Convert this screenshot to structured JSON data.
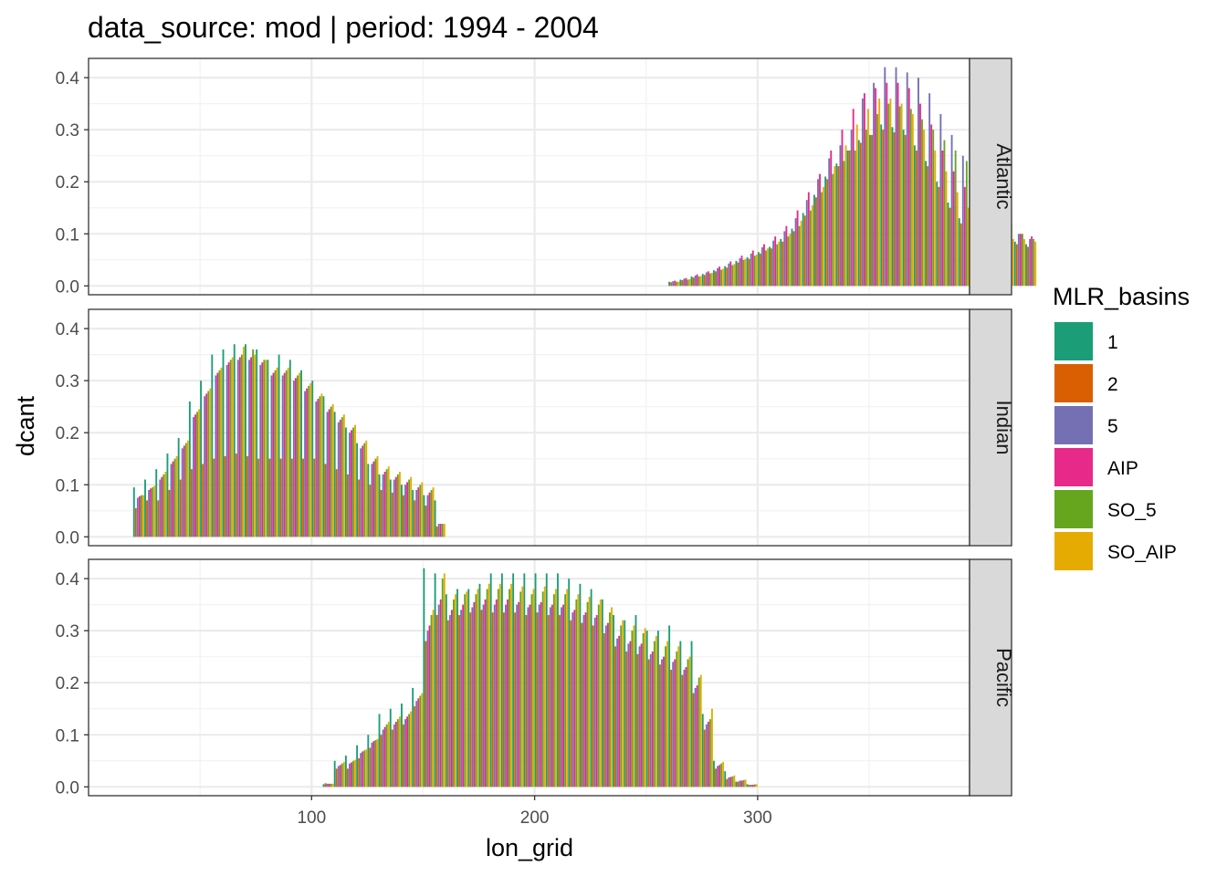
{
  "chart_data": {
    "type": "bar",
    "title": "data_source: mod | period: 1994 - 2004",
    "xlabel": "lon_grid",
    "ylabel": "dcant",
    "xlim": [
      0,
      395
    ],
    "ylim": [
      -0.017,
      0.437
    ],
    "x_ticks": [
      100,
      200,
      300
    ],
    "x_tick_labels": [
      "100",
      "200",
      "300"
    ],
    "y_ticks": [
      0.0,
      0.1,
      0.2,
      0.3,
      0.4
    ],
    "y_tick_labels": [
      "0.0",
      "0.1",
      "0.2",
      "0.3",
      "0.4"
    ],
    "grid": true,
    "facet_by": "basin",
    "facets": [
      "Atlantic",
      "Indian",
      "Pacific"
    ],
    "legend": {
      "title": "MLR_basins",
      "position": "right",
      "entries": [
        "1",
        "2",
        "5",
        "AIP",
        "SO_5",
        "SO_AIP"
      ]
    },
    "series_colors": {
      "1": "#1B9E77",
      "2": "#D95F02",
      "5": "#7570B3",
      "AIP": "#E7298A",
      "SO_5": "#66A61E",
      "SO_AIP": "#E6AB02"
    },
    "bar_groups": {
      "x_spacing": 5,
      "Atlantic": {
        "x_start": 262.5,
        "values": {
          "1": [
            0.008,
            0.012,
            0.018,
            0.023,
            0.03,
            0.038,
            0.048,
            0.055,
            0.065,
            0.075,
            0.09,
            0.11,
            0.14,
            0.175,
            0.21,
            0.235,
            0.26,
            0.28,
            0.29,
            0.31,
            0.305,
            0.3,
            0.27,
            0.24,
            0.2,
            0.16,
            0.13,
            0.11,
            0.09,
            0.085,
            0.08,
            0.085,
            0.08
          ],
          "2": [
            0.007,
            0.011,
            0.016,
            0.021,
            0.028,
            0.035,
            0.045,
            0.052,
            0.062,
            0.072,
            0.085,
            0.105,
            0.135,
            0.17,
            0.205,
            0.23,
            0.26,
            0.275,
            0.29,
            0.3,
            0.295,
            0.29,
            0.26,
            0.23,
            0.19,
            0.15,
            0.12,
            0.1,
            0.085,
            0.08,
            0.075,
            0.08,
            0.075
          ],
          "5": [
            0.009,
            0.014,
            0.02,
            0.026,
            0.034,
            0.043,
            0.053,
            0.062,
            0.074,
            0.087,
            0.105,
            0.13,
            0.165,
            0.205,
            0.245,
            0.27,
            0.3,
            0.36,
            0.39,
            0.42,
            0.42,
            0.41,
            0.4,
            0.37,
            0.33,
            0.29,
            0.25,
            0.21,
            0.18,
            0.15,
            0.12,
            0.1,
            0.09
          ],
          "AIP": [
            0.01,
            0.015,
            0.022,
            0.028,
            0.037,
            0.047,
            0.058,
            0.068,
            0.08,
            0.095,
            0.115,
            0.145,
            0.18,
            0.215,
            0.26,
            0.3,
            0.34,
            0.37,
            0.38,
            0.39,
            0.39,
            0.38,
            0.35,
            0.31,
            0.26,
            0.22,
            0.19,
            0.16,
            0.14,
            0.12,
            0.1,
            0.1,
            0.095
          ],
          "SO_5": [
            0.008,
            0.012,
            0.018,
            0.024,
            0.031,
            0.04,
            0.05,
            0.058,
            0.068,
            0.08,
            0.095,
            0.115,
            0.145,
            0.18,
            0.215,
            0.24,
            0.26,
            0.3,
            0.33,
            0.35,
            0.345,
            0.34,
            0.32,
            0.3,
            0.28,
            0.26,
            0.24,
            0.21,
            0.18,
            0.15,
            0.12,
            0.1,
            0.09
          ],
          "SO_AIP": [
            0.008,
            0.013,
            0.019,
            0.025,
            0.033,
            0.042,
            0.052,
            0.06,
            0.072,
            0.085,
            0.1,
            0.125,
            0.155,
            0.19,
            0.23,
            0.27,
            0.31,
            0.34,
            0.36,
            0.36,
            0.35,
            0.33,
            0.3,
            0.26,
            0.22,
            0.18,
            0.15,
            0.13,
            0.11,
            0.1,
            0.09,
            0.09,
            0.085
          ]
        }
      },
      "Indian": {
        "x_start": 22.5,
        "values": {
          "1": [
            0.095,
            0.11,
            0.13,
            0.16,
            0.19,
            0.26,
            0.3,
            0.35,
            0.36,
            0.37,
            0.37,
            0.36,
            0.34,
            0.35,
            0.34,
            0.32,
            0.3,
            0.27,
            0.24,
            0.21,
            0.18,
            0.14,
            0.12,
            0.11,
            0.1,
            0.09,
            0.08,
            0.07
          ],
          "2": [
            0.055,
            0.07,
            0.07,
            0.09,
            0.11,
            0.13,
            0.14,
            0.15,
            0.155,
            0.16,
            0.155,
            0.15,
            0.15,
            0.15,
            0.15,
            0.15,
            0.15,
            0.14,
            0.13,
            0.12,
            0.11,
            0.1,
            0.09,
            0.085,
            0.08,
            0.07,
            0.06,
            0.02
          ],
          "5": [
            0.075,
            0.09,
            0.11,
            0.14,
            0.17,
            0.23,
            0.27,
            0.31,
            0.33,
            0.34,
            0.34,
            0.33,
            0.31,
            0.31,
            0.3,
            0.28,
            0.26,
            0.24,
            0.22,
            0.2,
            0.17,
            0.14,
            0.12,
            0.11,
            0.1,
            0.09,
            0.08,
            0.025
          ],
          "AIP": [
            0.078,
            0.093,
            0.115,
            0.145,
            0.175,
            0.235,
            0.275,
            0.315,
            0.335,
            0.345,
            0.345,
            0.335,
            0.315,
            0.315,
            0.305,
            0.285,
            0.265,
            0.245,
            0.225,
            0.205,
            0.175,
            0.145,
            0.125,
            0.115,
            0.105,
            0.095,
            0.085,
            0.025
          ],
          "SO_5": [
            0.08,
            0.095,
            0.12,
            0.15,
            0.18,
            0.24,
            0.28,
            0.32,
            0.34,
            0.35,
            0.36,
            0.34,
            0.32,
            0.32,
            0.31,
            0.29,
            0.27,
            0.25,
            0.23,
            0.21,
            0.18,
            0.15,
            0.13,
            0.12,
            0.11,
            0.1,
            0.09,
            0.025
          ],
          "SO_AIP": [
            0.08,
            0.098,
            0.125,
            0.155,
            0.185,
            0.245,
            0.285,
            0.325,
            0.345,
            0.365,
            0.35,
            0.34,
            0.325,
            0.325,
            0.315,
            0.295,
            0.275,
            0.255,
            0.235,
            0.215,
            0.185,
            0.155,
            0.135,
            0.125,
            0.115,
            0.105,
            0.095,
            0.025
          ]
        }
      },
      "Pacific": {
        "x_start": 107.5,
        "values": {
          "1": [
            0.005,
            0.05,
            0.06,
            0.08,
            0.1,
            0.14,
            0.15,
            0.16,
            0.19,
            0.42,
            0.41,
            0.37,
            0.38,
            0.38,
            0.39,
            0.41,
            0.41,
            0.41,
            0.41,
            0.41,
            0.41,
            0.41,
            0.4,
            0.39,
            0.38,
            0.36,
            0.33,
            0.32,
            0.33,
            0.3,
            0.3,
            0.31,
            0.28,
            0.28,
            0.14,
            0.05,
            0.03,
            0.01,
            0.005
          ],
          "2": [
            0.007,
            0.035,
            0.035,
            0.055,
            0.075,
            0.1,
            0.11,
            0.12,
            0.155,
            0.28,
            0.33,
            0.32,
            0.33,
            0.335,
            0.34,
            0.335,
            0.335,
            0.335,
            0.33,
            0.335,
            0.33,
            0.33,
            0.32,
            0.315,
            0.31,
            0.295,
            0.27,
            0.26,
            0.255,
            0.245,
            0.235,
            0.225,
            0.215,
            0.18,
            0.11,
            0.035,
            0.015,
            0.01,
            0.004
          ],
          "5": [
            0.006,
            0.04,
            0.045,
            0.065,
            0.085,
            0.11,
            0.12,
            0.13,
            0.165,
            0.3,
            0.35,
            0.33,
            0.34,
            0.345,
            0.35,
            0.35,
            0.35,
            0.35,
            0.345,
            0.35,
            0.345,
            0.345,
            0.335,
            0.33,
            0.325,
            0.31,
            0.285,
            0.275,
            0.27,
            0.255,
            0.245,
            0.24,
            0.225,
            0.19,
            0.12,
            0.04,
            0.018,
            0.012,
            0.004
          ],
          "AIP": [
            0.006,
            0.042,
            0.047,
            0.068,
            0.088,
            0.115,
            0.125,
            0.135,
            0.17,
            0.31,
            0.36,
            0.34,
            0.35,
            0.355,
            0.36,
            0.36,
            0.36,
            0.355,
            0.35,
            0.355,
            0.35,
            0.35,
            0.34,
            0.335,
            0.33,
            0.315,
            0.29,
            0.28,
            0.275,
            0.26,
            0.25,
            0.245,
            0.23,
            0.195,
            0.125,
            0.042,
            0.019,
            0.012,
            0.004
          ],
          "SO_5": [
            0.006,
            0.045,
            0.05,
            0.07,
            0.09,
            0.12,
            0.13,
            0.14,
            0.175,
            0.33,
            0.4,
            0.36,
            0.37,
            0.37,
            0.38,
            0.38,
            0.38,
            0.375,
            0.37,
            0.375,
            0.37,
            0.37,
            0.36,
            0.355,
            0.35,
            0.335,
            0.31,
            0.3,
            0.295,
            0.28,
            0.27,
            0.26,
            0.245,
            0.21,
            0.13,
            0.045,
            0.02,
            0.013,
            0.005
          ],
          "SO_AIP": [
            0.006,
            0.048,
            0.052,
            0.072,
            0.092,
            0.125,
            0.135,
            0.145,
            0.18,
            0.34,
            0.41,
            0.37,
            0.375,
            0.38,
            0.39,
            0.39,
            0.39,
            0.385,
            0.38,
            0.385,
            0.38,
            0.38,
            0.37,
            0.365,
            0.36,
            0.345,
            0.32,
            0.31,
            0.305,
            0.29,
            0.28,
            0.27,
            0.25,
            0.215,
            0.15,
            0.048,
            0.022,
            0.014,
            0.005
          ]
        }
      }
    }
  }
}
